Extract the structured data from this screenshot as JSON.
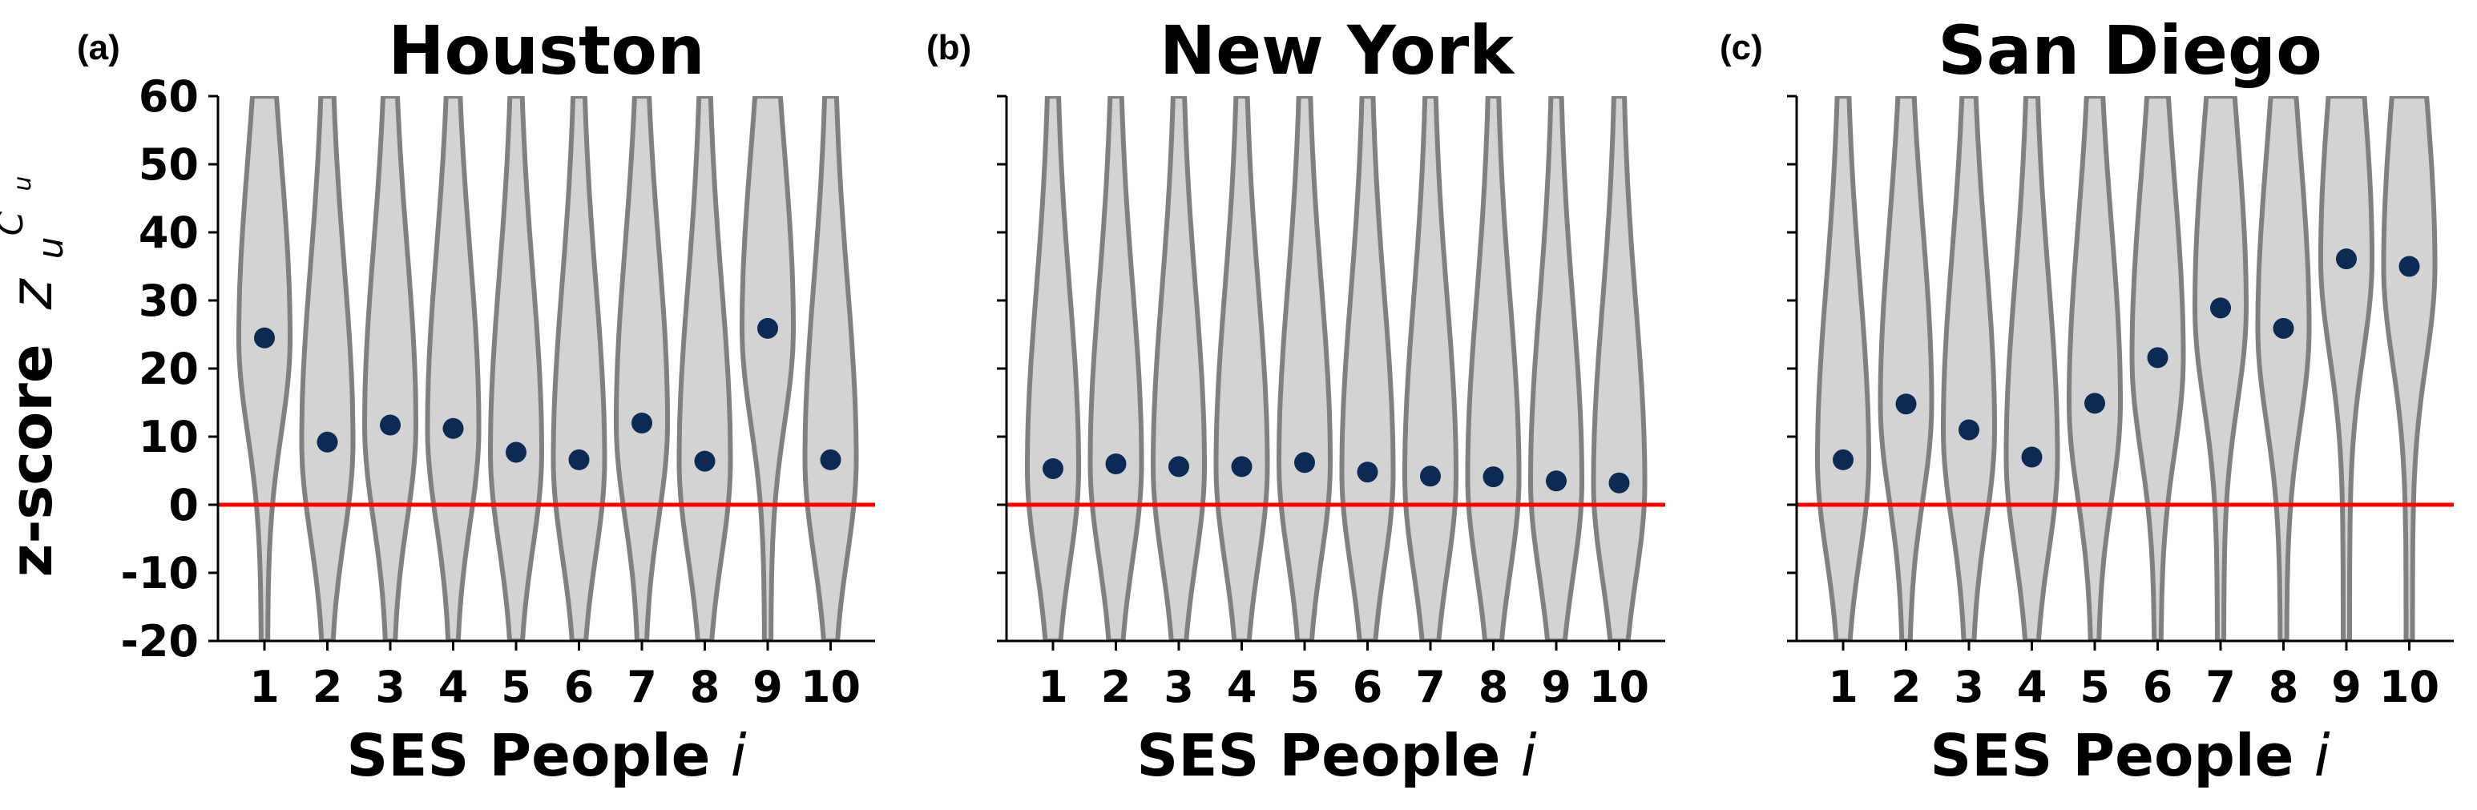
{
  "figure": {
    "ylabel": "z-score",
    "ylabel_symbol": "z",
    "ylabel_sub": "u",
    "ylabel_sup": "C",
    "ylabel_sup_sub": "u",
    "colors": {
      "violin_fill": "#d3d3d3",
      "violin_edge": "#808080",
      "point": "#0b2a55",
      "zero_line": "#ff0000"
    }
  },
  "chart_data": [
    {
      "type": "violin",
      "letter": "(a)",
      "title": "Houston",
      "xlabel": "SES People",
      "xlabel_var": "i",
      "categories": [
        "1",
        "2",
        "3",
        "4",
        "5",
        "6",
        "7",
        "8",
        "9",
        "10"
      ],
      "values": [
        24.5,
        9.2,
        11.7,
        11.2,
        7.7,
        6.6,
        12.0,
        6.4,
        25.9,
        6.6
      ],
      "ylim": [
        -20,
        60
      ],
      "yticks": [
        "-20",
        "-10",
        "0",
        "10",
        "20",
        "30",
        "40",
        "50",
        "60"
      ],
      "reference_line": 0
    },
    {
      "type": "violin",
      "letter": "(b)",
      "title": "New York",
      "xlabel": "SES People",
      "xlabel_var": "i",
      "categories": [
        "1",
        "2",
        "3",
        "4",
        "5",
        "6",
        "7",
        "8",
        "9",
        "10"
      ],
      "values": [
        5.3,
        6.0,
        5.6,
        5.6,
        6.2,
        4.8,
        4.2,
        4.1,
        3.5,
        3.2
      ],
      "ylim": [
        -20,
        60
      ],
      "reference_line": 0
    },
    {
      "type": "violin",
      "letter": "(c)",
      "title": "San Diego",
      "xlabel": "SES People",
      "xlabel_var": "i",
      "categories": [
        "1",
        "2",
        "3",
        "4",
        "5",
        "6",
        "7",
        "8",
        "9",
        "10"
      ],
      "values": [
        6.6,
        14.8,
        11.0,
        7.0,
        14.9,
        21.6,
        28.9,
        25.9,
        36.1,
        35.0
      ],
      "ylim": [
        -20,
        60
      ],
      "reference_line": 0
    }
  ]
}
